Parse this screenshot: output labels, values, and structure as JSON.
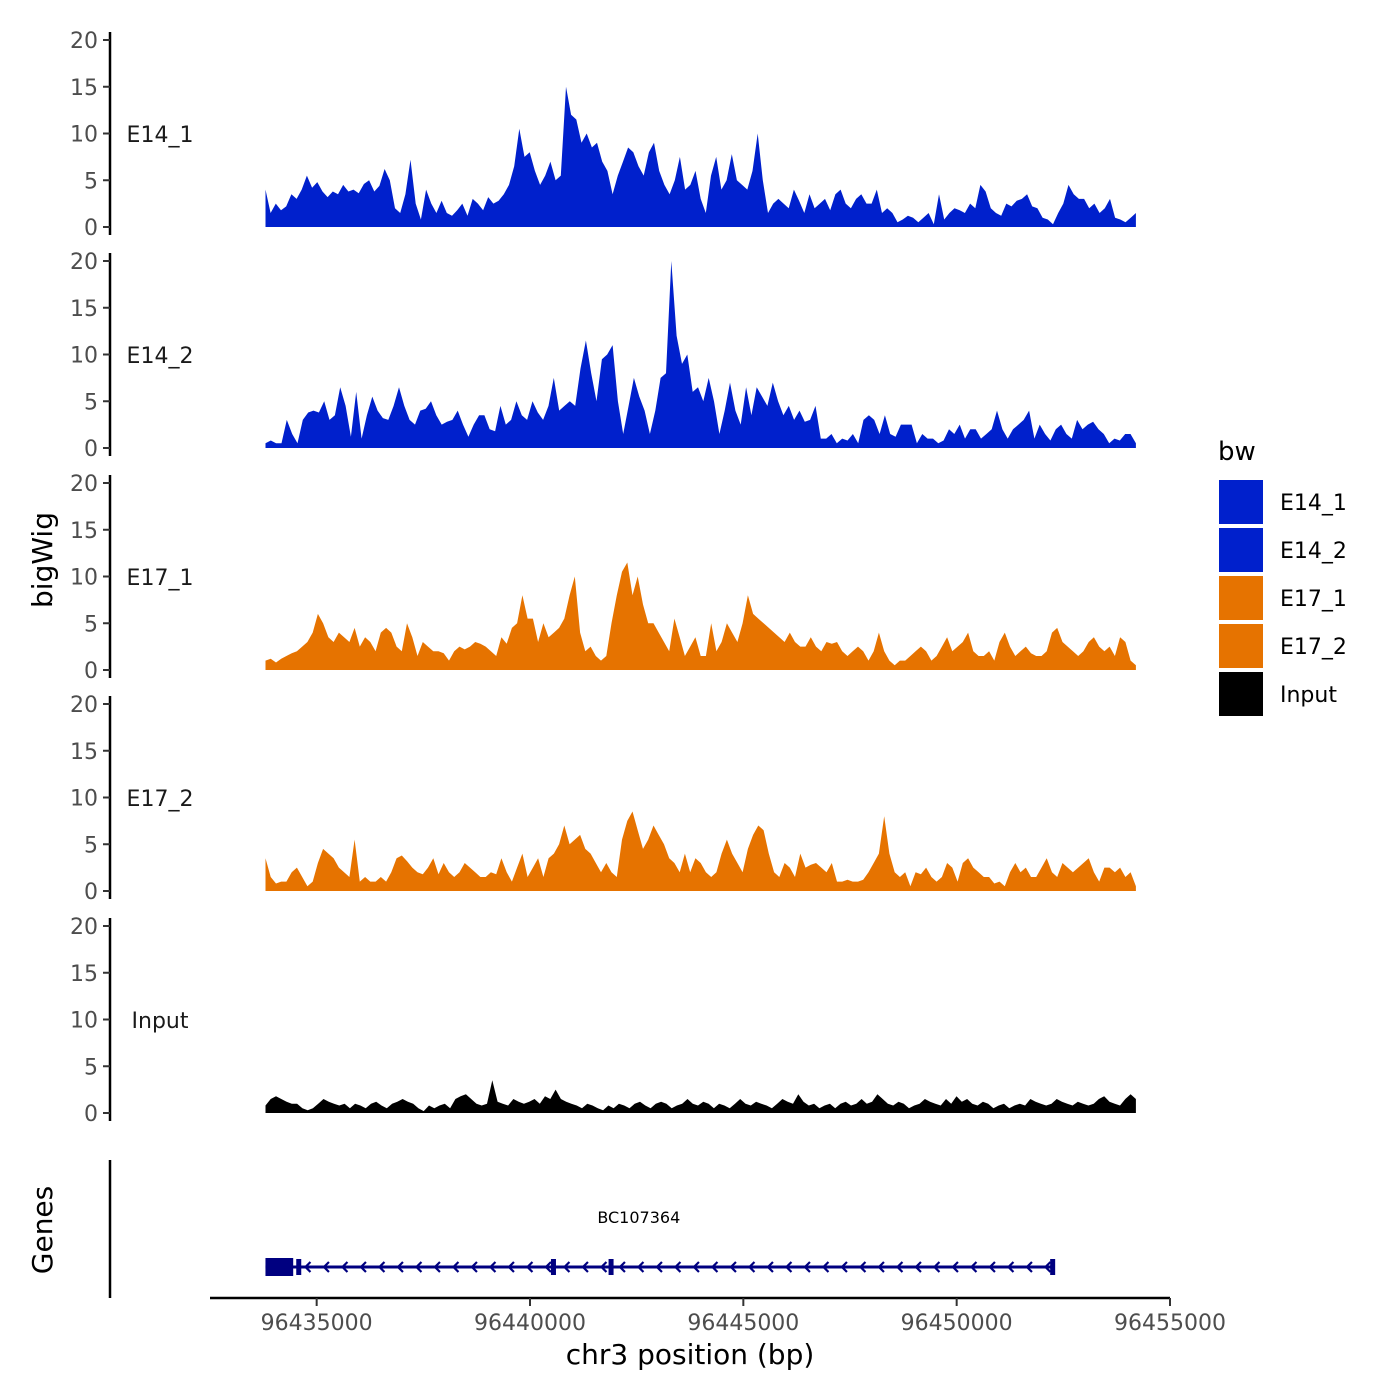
{
  "chart_data": {
    "type": "area",
    "ylabel": "bigWig",
    "xlabel": "chr3 position (bp)",
    "chromosome": "chr3",
    "xlim": [
      96432500,
      96455000
    ],
    "data_range": [
      96433800,
      96454200
    ],
    "ylim": [
      0,
      20
    ],
    "y_ticks": [
      0,
      5,
      10,
      15,
      20
    ],
    "x_ticks": [
      96435000,
      96440000,
      96445000,
      96450000,
      96455000
    ],
    "x_tick_labels": [
      "96435000",
      "96440000",
      "96445000",
      "96450000",
      "96455000"
    ],
    "grid": false,
    "legend": {
      "title": "bw",
      "position": "right",
      "items": [
        {
          "label": "E14_1",
          "color": "#0020CC"
        },
        {
          "label": "E14_2",
          "color": "#0020CC"
        },
        {
          "label": "E17_1",
          "color": "#E67300"
        },
        {
          "label": "E17_2",
          "color": "#E67300"
        },
        {
          "label": "Input",
          "color": "#000000"
        }
      ]
    },
    "series": [
      {
        "name": "E14_1",
        "color": "#0020CC",
        "values": [
          4.0,
          1.5,
          2.5,
          1.8,
          2.2,
          3.5,
          3.0,
          4.0,
          5.5,
          4.2,
          4.8,
          3.8,
          3.2,
          3.8,
          3.5,
          4.5,
          3.8,
          4.0,
          3.6,
          4.6,
          5.0,
          3.8,
          4.4,
          6.2,
          5.0,
          2.0,
          1.5,
          3.5,
          7.2,
          2.5,
          0.8,
          4.0,
          2.5,
          1.5,
          2.8,
          1.5,
          1.2,
          1.8,
          2.5,
          1.2,
          3.0,
          2.5,
          1.8,
          3.2,
          2.5,
          2.8,
          3.5,
          4.5,
          6.5,
          10.5,
          7.5,
          8.0,
          6.0,
          4.5,
          5.5,
          7.0,
          5.0,
          5.5,
          15.0,
          12.0,
          11.5,
          9.0,
          10.0,
          8.5,
          9.0,
          7.0,
          6.0,
          3.5,
          5.5,
          7.0,
          8.5,
          8.0,
          6.5,
          5.5,
          8.0,
          9.0,
          6.0,
          4.5,
          3.5,
          5.0,
          7.5,
          4.0,
          4.5,
          6.0,
          3.0,
          1.5,
          5.5,
          7.5,
          4.0,
          5.0,
          7.8,
          5.0,
          4.5,
          4.0,
          6.0,
          10.0,
          5.0,
          1.5,
          2.5,
          3.0,
          2.5,
          2.0,
          4.0,
          2.8,
          1.5,
          3.5,
          2.0,
          2.5,
          3.0,
          1.8,
          3.5,
          4.0,
          2.5,
          2.0,
          3.0,
          3.5,
          2.5,
          2.5,
          4.0,
          1.5,
          2.0,
          1.5,
          0.5,
          0.8,
          1.2,
          1.0,
          0.5,
          1.0,
          1.5,
          0.3,
          3.5,
          0.8,
          1.5,
          2.0,
          1.8,
          1.5,
          2.5,
          2.0,
          4.5,
          3.8,
          2.0,
          1.5,
          1.2,
          2.5,
          2.2,
          2.8,
          3.0,
          3.5,
          2.2,
          2.0,
          1.0,
          0.8,
          0.3,
          1.5,
          2.5,
          4.5,
          3.5,
          3.0,
          3.0,
          2.0,
          2.5,
          1.5,
          2.0,
          3.0,
          1.0,
          0.8,
          0.5,
          1.0,
          1.5
        ]
      },
      {
        "name": "E14_2",
        "color": "#0020CC",
        "values": [
          0.5,
          0.8,
          0.5,
          0.5,
          3.0,
          1.5,
          0.5,
          3.0,
          3.8,
          4.0,
          3.8,
          5.0,
          3.0,
          3.5,
          6.5,
          4.5,
          1.2,
          6.0,
          1.0,
          3.5,
          5.5,
          4.0,
          3.2,
          3.0,
          4.5,
          6.5,
          4.5,
          3.0,
          2.5,
          4.0,
          4.2,
          5.0,
          3.5,
          2.5,
          2.8,
          3.0,
          4.0,
          2.5,
          1.2,
          2.5,
          3.5,
          3.5,
          2.0,
          1.8,
          4.5,
          2.5,
          3.0,
          5.0,
          3.5,
          3.0,
          5.0,
          3.8,
          3.0,
          4.5,
          7.5,
          4.0,
          4.5,
          5.0,
          4.5,
          8.5,
          11.5,
          8.0,
          5.0,
          9.5,
          10.0,
          11.0,
          5.0,
          1.5,
          4.5,
          7.5,
          5.5,
          4.0,
          1.5,
          4.0,
          7.5,
          8.0,
          20.0,
          12.0,
          9.0,
          10.0,
          6.0,
          6.5,
          5.0,
          7.5,
          5.0,
          1.5,
          4.0,
          7.0,
          4.0,
          2.5,
          6.5,
          3.5,
          6.5,
          5.5,
          4.5,
          7.0,
          5.0,
          3.5,
          4.5,
          3.0,
          4.0,
          2.8,
          3.0,
          4.5,
          1.0,
          1.0,
          1.5,
          0.5,
          1.0,
          0.8,
          1.5,
          0.5,
          3.0,
          3.5,
          3.0,
          1.5,
          3.5,
          1.5,
          1.2,
          2.5,
          2.5,
          2.5,
          0.5,
          1.5,
          1.0,
          1.0,
          0.5,
          0.8,
          2.0,
          1.5,
          2.5,
          1.0,
          2.0,
          2.0,
          1.0,
          1.5,
          2.0,
          4.0,
          2.0,
          1.0,
          2.0,
          2.5,
          3.0,
          4.0,
          1.0,
          2.5,
          1.5,
          0.8,
          2.0,
          2.5,
          1.5,
          1.0,
          3.0,
          2.0,
          2.5,
          2.8,
          2.0,
          1.5,
          0.5,
          1.0,
          0.8,
          1.5,
          1.5,
          0.5
        ]
      },
      {
        "name": "E17_1",
        "color": "#E67300",
        "values": [
          1.0,
          1.2,
          0.8,
          1.2,
          1.5,
          1.8,
          2.0,
          2.5,
          3.0,
          4.0,
          6.0,
          5.0,
          3.5,
          3.0,
          4.0,
          3.5,
          3.0,
          4.5,
          2.5,
          3.5,
          3.0,
          2.0,
          4.0,
          4.5,
          4.0,
          2.5,
          2.0,
          5.0,
          3.5,
          1.5,
          3.0,
          2.5,
          2.0,
          2.0,
          1.8,
          1.0,
          2.0,
          2.5,
          2.2,
          2.5,
          3.0,
          2.8,
          2.5,
          2.0,
          1.5,
          3.5,
          2.8,
          4.5,
          5.0,
          8.0,
          5.5,
          5.5,
          3.0,
          5.0,
          3.5,
          4.0,
          4.5,
          5.5,
          8.0,
          10.0,
          4.0,
          2.0,
          2.5,
          1.5,
          1.0,
          1.5,
          5.0,
          8.0,
          10.5,
          11.5,
          8.0,
          10.0,
          7.0,
          5.0,
          5.0,
          4.0,
          3.0,
          2.0,
          5.5,
          3.5,
          1.5,
          2.5,
          3.5,
          1.5,
          1.5,
          5.0,
          2.0,
          3.0,
          5.0,
          4.0,
          3.0,
          5.0,
          8.0,
          6.0,
          5.5,
          5.0,
          4.5,
          4.0,
          3.5,
          3.0,
          4.0,
          3.0,
          2.5,
          2.5,
          3.5,
          2.5,
          2.0,
          3.0,
          2.8,
          3.0,
          2.0,
          1.5,
          2.0,
          2.5,
          2.0,
          1.0,
          2.0,
          4.0,
          2.0,
          1.0,
          0.5,
          1.0,
          1.0,
          1.5,
          2.0,
          2.5,
          2.0,
          1.0,
          1.5,
          2.5,
          3.5,
          2.0,
          2.5,
          3.0,
          4.0,
          2.0,
          1.5,
          1.5,
          2.0,
          1.0,
          3.0,
          4.0,
          2.5,
          1.5,
          2.0,
          2.5,
          1.8,
          1.5,
          1.5,
          2.0,
          4.0,
          4.5,
          3.0,
          2.5,
          2.0,
          1.5,
          2.0,
          3.0,
          3.5,
          2.5,
          2.0,
          2.5,
          1.5,
          3.5,
          3.0,
          1.0,
          0.5
        ]
      },
      {
        "name": "E17_2",
        "color": "#E67300",
        "values": [
          3.5,
          1.5,
          0.8,
          1.0,
          1.0,
          2.0,
          2.5,
          1.5,
          0.5,
          1.0,
          3.0,
          4.5,
          4.0,
          3.5,
          2.5,
          2.0,
          1.5,
          5.5,
          1.0,
          1.5,
          1.0,
          1.0,
          1.5,
          1.0,
          2.0,
          3.5,
          3.8,
          3.2,
          2.5,
          2.0,
          1.8,
          2.5,
          3.5,
          1.8,
          3.0,
          2.0,
          1.5,
          2.0,
          3.0,
          2.5,
          2.0,
          1.5,
          1.5,
          2.0,
          1.8,
          3.5,
          2.0,
          1.0,
          2.5,
          4.0,
          1.5,
          2.5,
          3.5,
          1.5,
          3.5,
          4.0,
          5.0,
          7.0,
          5.0,
          5.5,
          6.0,
          4.5,
          4.0,
          3.0,
          2.0,
          3.0,
          2.0,
          1.5,
          5.5,
          7.5,
          8.5,
          6.5,
          4.5,
          5.5,
          7.0,
          6.0,
          5.0,
          3.5,
          3.0,
          2.0,
          4.0,
          2.0,
          3.5,
          3.0,
          2.0,
          1.5,
          2.0,
          4.0,
          5.5,
          4.0,
          3.0,
          2.0,
          4.5,
          6.0,
          7.0,
          6.5,
          4.0,
          2.0,
          1.5,
          3.0,
          2.5,
          1.5,
          4.0,
          2.5,
          2.8,
          3.0,
          2.5,
          2.0,
          3.0,
          1.0,
          1.0,
          1.2,
          1.0,
          1.0,
          1.2,
          2.0,
          3.0,
          4.0,
          8.0,
          4.0,
          2.0,
          1.5,
          2.0,
          0.5,
          2.0,
          1.8,
          2.5,
          1.5,
          1.0,
          1.5,
          3.0,
          2.5,
          1.0,
          3.0,
          3.5,
          2.5,
          2.0,
          1.5,
          1.5,
          0.8,
          1.0,
          0.5,
          2.0,
          3.0,
          2.0,
          2.5,
          1.5,
          1.5,
          2.5,
          3.5,
          2.0,
          1.5,
          3.0,
          2.5,
          2.0,
          2.5,
          3.0,
          3.5,
          2.0,
          1.0,
          2.5,
          2.5,
          2.0,
          2.5,
          1.5,
          2.0,
          0.5
        ]
      },
      {
        "name": "Input",
        "color": "#000000",
        "values": [
          0.8,
          1.5,
          1.8,
          1.5,
          1.2,
          1.0,
          1.0,
          0.5,
          0.3,
          0.5,
          1.0,
          1.5,
          1.2,
          1.0,
          0.8,
          1.0,
          0.5,
          1.0,
          0.8,
          0.5,
          1.0,
          1.2,
          0.8,
          0.5,
          1.0,
          1.2,
          1.5,
          1.2,
          1.0,
          0.5,
          0.2,
          0.8,
          0.5,
          0.8,
          1.0,
          0.5,
          1.5,
          1.8,
          2.0,
          1.5,
          1.0,
          0.8,
          1.0,
          3.5,
          1.2,
          1.0,
          0.8,
          1.5,
          1.2,
          1.0,
          1.2,
          1.5,
          1.0,
          1.8,
          1.5,
          2.5,
          1.5,
          1.2,
          1.0,
          0.8,
          0.5,
          1.0,
          0.8,
          0.5,
          0.3,
          0.8,
          0.5,
          1.0,
          0.8,
          0.5,
          1.0,
          1.2,
          0.8,
          0.5,
          1.0,
          1.2,
          1.0,
          0.5,
          0.8,
          1.0,
          1.5,
          1.0,
          0.8,
          1.2,
          1.0,
          0.5,
          1.0,
          0.8,
          0.5,
          1.0,
          1.5,
          1.0,
          0.8,
          1.2,
          1.0,
          0.8,
          0.5,
          1.0,
          1.5,
          1.2,
          1.0,
          2.0,
          1.2,
          0.8,
          1.0,
          0.5,
          0.8,
          1.0,
          0.5,
          1.0,
          1.2,
          0.8,
          1.0,
          1.5,
          1.0,
          1.2,
          2.0,
          1.5,
          1.0,
          0.8,
          1.2,
          1.0,
          0.5,
          0.8,
          1.0,
          1.5,
          1.2,
          1.0,
          0.8,
          1.5,
          1.0,
          1.8,
          1.2,
          1.5,
          1.0,
          0.8,
          1.2,
          1.0,
          0.5,
          0.8,
          1.0,
          0.5,
          0.8,
          1.0,
          0.8,
          1.5,
          1.2,
          1.0,
          0.8,
          1.0,
          1.5,
          1.2,
          1.0,
          0.8,
          1.2,
          1.0,
          0.8,
          1.0,
          1.5,
          1.8,
          1.2,
          1.0,
          0.8,
          1.5,
          2.0,
          1.5
        ]
      }
    ],
    "gene_track": {
      "ylabel": "Genes",
      "name": "BC107364",
      "color": "#000080",
      "strand": "-",
      "start": 96433800,
      "end": 96452300,
      "utr_block": [
        96433800,
        96434450
      ],
      "exons": [
        96434580,
        96440550,
        96441900,
        96452250
      ]
    }
  }
}
